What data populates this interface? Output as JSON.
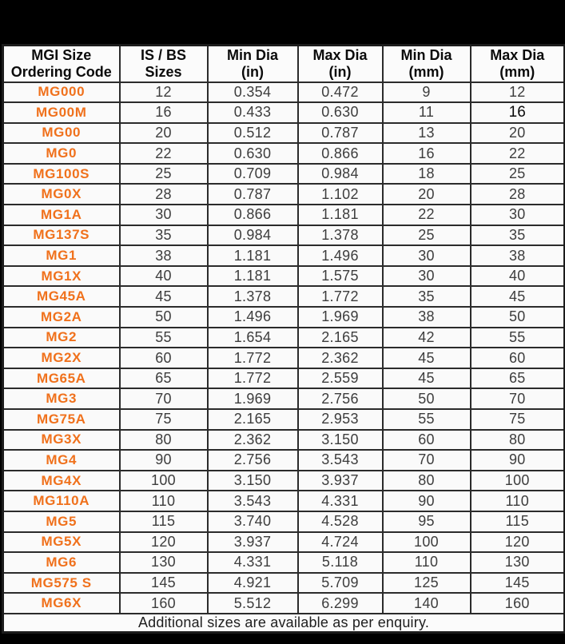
{
  "page": {
    "background_color": "#000000",
    "accent_color": "#F0711C",
    "border_color": "#2B2B2B"
  },
  "table": {
    "columns": [
      {
        "line1": "MGI  Size",
        "line2": "Ordering Code"
      },
      {
        "line1": "IS / BS",
        "line2": "Sizes"
      },
      {
        "line1": "Min Dia",
        "line2": "(in)"
      },
      {
        "line1": "Max Dia",
        "line2": "(in)"
      },
      {
        "line1": "Min Dia",
        "line2": "(mm)"
      },
      {
        "line1": "Max Dia",
        "line2": "(mm)"
      }
    ],
    "rows": [
      {
        "code": "MG000",
        "is_bs": "12",
        "min_in": "0.354",
        "max_in": "0.472",
        "min_mm": "9",
        "max_mm": "12",
        "max_mm_variant": false
      },
      {
        "code": "MG00M",
        "is_bs": "16",
        "min_in": "0.433",
        "max_in": "0.630",
        "min_mm": "11",
        "max_mm": "16",
        "max_mm_variant": true
      },
      {
        "code": "MG00",
        "is_bs": "20",
        "min_in": "0.512",
        "max_in": "0.787",
        "min_mm": "13",
        "max_mm": "20",
        "max_mm_variant": false
      },
      {
        "code": "MG0",
        "is_bs": "22",
        "min_in": "0.630",
        "max_in": "0.866",
        "min_mm": "16",
        "max_mm": "22",
        "max_mm_variant": false
      },
      {
        "code": "MG100S",
        "is_bs": "25",
        "min_in": "0.709",
        "max_in": "0.984",
        "min_mm": "18",
        "max_mm": "25",
        "max_mm_variant": false
      },
      {
        "code": "MG0X",
        "is_bs": "28",
        "min_in": "0.787",
        "max_in": "1.102",
        "min_mm": "20",
        "max_mm": "28",
        "max_mm_variant": false
      },
      {
        "code": "MG1A",
        "is_bs": "30",
        "min_in": "0.866",
        "max_in": "1.181",
        "min_mm": "22",
        "max_mm": "30",
        "max_mm_variant": false
      },
      {
        "code": "MG137S",
        "is_bs": "35",
        "min_in": "0.984",
        "max_in": "1.378",
        "min_mm": "25",
        "max_mm": "35",
        "max_mm_variant": false
      },
      {
        "code": "MG1",
        "is_bs": "38",
        "min_in": "1.181",
        "max_in": "1.496",
        "min_mm": "30",
        "max_mm": "38",
        "max_mm_variant": false
      },
      {
        "code": "MG1X",
        "is_bs": "40",
        "min_in": "1.181",
        "max_in": "1.575",
        "min_mm": "30",
        "max_mm": "40",
        "max_mm_variant": false
      },
      {
        "code": "MG45A",
        "is_bs": "45",
        "min_in": "1.378",
        "max_in": "1.772",
        "min_mm": "35",
        "max_mm": "45",
        "max_mm_variant": false
      },
      {
        "code": "MG2A",
        "is_bs": "50",
        "min_in": "1.496",
        "max_in": "1.969",
        "min_mm": "38",
        "max_mm": "50",
        "max_mm_variant": false
      },
      {
        "code": "MG2",
        "is_bs": "55",
        "min_in": "1.654",
        "max_in": "2.165",
        "min_mm": "42",
        "max_mm": "55",
        "max_mm_variant": false
      },
      {
        "code": "MG2X",
        "is_bs": "60",
        "min_in": "1.772",
        "max_in": "2.362",
        "min_mm": "45",
        "max_mm": "60",
        "max_mm_variant": false
      },
      {
        "code": "MG65A",
        "is_bs": "65",
        "min_in": "1.772",
        "max_in": "2.559",
        "min_mm": "45",
        "max_mm": "65",
        "max_mm_variant": false
      },
      {
        "code": "MG3",
        "is_bs": "70",
        "min_in": "1.969",
        "max_in": "2.756",
        "min_mm": "50",
        "max_mm": "70",
        "max_mm_variant": false
      },
      {
        "code": "MG75A",
        "is_bs": "75",
        "min_in": "2.165",
        "max_in": "2.953",
        "min_mm": "55",
        "max_mm": "75",
        "max_mm_variant": false
      },
      {
        "code": "MG3X",
        "is_bs": "80",
        "min_in": "2.362",
        "max_in": "3.150",
        "min_mm": "60",
        "max_mm": "80",
        "max_mm_variant": false
      },
      {
        "code": "MG4",
        "is_bs": "90",
        "min_in": "2.756",
        "max_in": "3.543",
        "min_mm": "70",
        "max_mm": "90",
        "max_mm_variant": false
      },
      {
        "code": "MG4X",
        "is_bs": "100",
        "min_in": "3.150",
        "max_in": "3.937",
        "min_mm": "80",
        "max_mm": "100",
        "max_mm_variant": false
      },
      {
        "code": "MG110A",
        "is_bs": "110",
        "min_in": "3.543",
        "max_in": "4.331",
        "min_mm": "90",
        "max_mm": "110",
        "max_mm_variant": false
      },
      {
        "code": "MG5",
        "is_bs": "115",
        "min_in": "3.740",
        "max_in": "4.528",
        "min_mm": "95",
        "max_mm": "115",
        "max_mm_variant": false
      },
      {
        "code": "MG5X",
        "is_bs": "120",
        "min_in": "3.937",
        "max_in": "4.724",
        "min_mm": "100",
        "max_mm": "120",
        "max_mm_variant": false
      },
      {
        "code": "MG6",
        "is_bs": "130",
        "min_in": "4.331",
        "max_in": "5.118",
        "min_mm": "110",
        "max_mm": "130",
        "max_mm_variant": false
      },
      {
        "code": "MG575 S",
        "is_bs": "145",
        "min_in": "4.921",
        "max_in": "5.709",
        "min_mm": "125",
        "max_mm": "145",
        "max_mm_variant": false
      },
      {
        "code": "MG6X",
        "is_bs": "160",
        "min_in": "5.512",
        "max_in": "6.299",
        "min_mm": "140",
        "max_mm": "160",
        "max_mm_variant": false
      }
    ],
    "footer": "Additional sizes are available as per enquiry."
  }
}
